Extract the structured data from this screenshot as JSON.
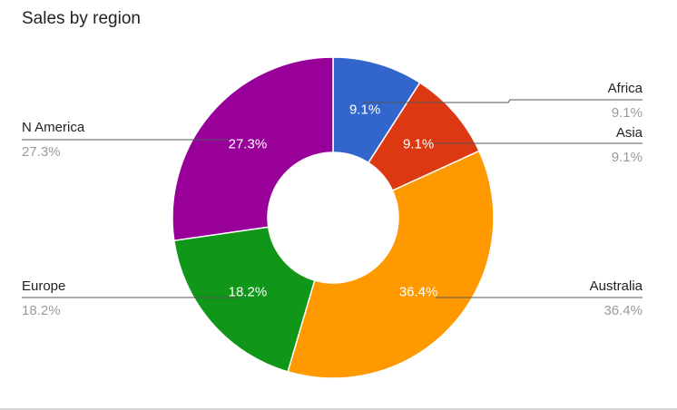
{
  "chart_data": {
    "type": "pie",
    "title": "Sales by region",
    "donut": true,
    "legend_placement": "labels beside slices",
    "slices": [
      {
        "label": "Africa",
        "value": 9.1,
        "percent_label": "9.1%",
        "color": "#3366cc"
      },
      {
        "label": "Asia",
        "value": 9.1,
        "percent_label": "9.1%",
        "color": "#dc3912"
      },
      {
        "label": "Australia",
        "value": 36.4,
        "percent_label": "36.4%",
        "color": "#ff9900"
      },
      {
        "label": "Europe",
        "value": 18.2,
        "percent_label": "18.2%",
        "color": "#109618"
      },
      {
        "label": "N America",
        "value": 27.3,
        "percent_label": "27.3%",
        "color": "#990099"
      }
    ]
  }
}
